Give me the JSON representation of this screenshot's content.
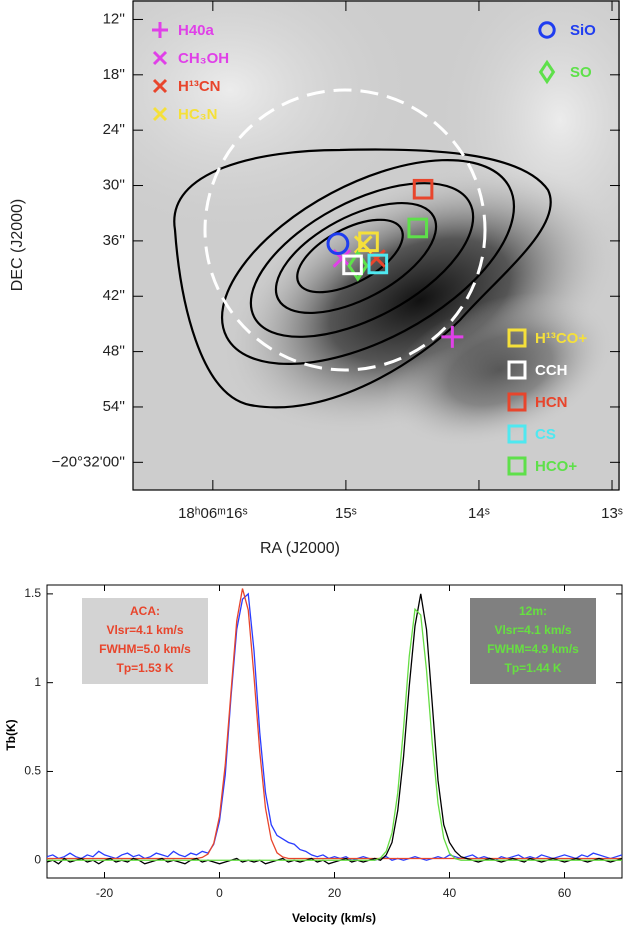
{
  "chart_data": [
    {
      "type": "map",
      "xlabel": "RA (J2000)",
      "ylabel": "DEC (J2000)",
      "xlim": [
        16.6,
        12.94
      ],
      "ylim": [
        63,
        10
      ],
      "xticks": [
        {
          "value": 16,
          "label": "18ʰ06ᵐ16ˢ"
        },
        {
          "value": 15,
          "label": "15ˢ"
        },
        {
          "value": 14,
          "label": "14ˢ"
        },
        {
          "value": 13,
          "label": "13ˢ"
        }
      ],
      "yticks": [
        {
          "value": 12,
          "label": "12''"
        },
        {
          "value": 18,
          "label": "18''"
        },
        {
          "value": 24,
          "label": "24''"
        },
        {
          "value": 30,
          "label": "30''"
        },
        {
          "value": 36,
          "label": "36''"
        },
        {
          "value": 42,
          "label": "42''"
        },
        {
          "value": 48,
          "label": "48''"
        },
        {
          "value": 54,
          "label": "54''"
        },
        {
          "value": 60,
          "label": "−20°32'00''"
        }
      ],
      "series": [
        {
          "name": "H40a",
          "color": "#e040e8",
          "marker": "plus",
          "x": [
            14.2
          ],
          "y": [
            46.4
          ]
        },
        {
          "name": "CH₃OH",
          "color": "#e040e8",
          "marker": "x",
          "x": [
            15.03
          ],
          "y": [
            37.9
          ]
        },
        {
          "name": "H¹³CN",
          "color": "#e8452c",
          "marker": "x",
          "x": [
            14.77
          ],
          "y": [
            37.9
          ]
        },
        {
          "name": "HC₃N",
          "color": "#f5e03a",
          "marker": "x",
          "x": [
            14.87
          ],
          "y": [
            36.4
          ]
        },
        {
          "name": "SiO",
          "color": "#1f3df0",
          "marker": "circle",
          "x": [
            15.06
          ],
          "y": [
            36.3
          ]
        },
        {
          "name": "SO",
          "color": "#5ee04a",
          "marker": "diamond",
          "x": [
            14.91
          ],
          "y": [
            38.7
          ]
        },
        {
          "name": "H¹³CO+",
          "color": "#f5e03a",
          "marker": "square",
          "x": [
            14.83
          ],
          "y": [
            36.1
          ]
        },
        {
          "name": "CCH",
          "color": "#ffffff",
          "marker": "square",
          "x": [
            14.95
          ],
          "y": [
            38.6
          ]
        },
        {
          "name": "HCN",
          "color": "#e8452c",
          "marker": "square",
          "x": [
            14.42
          ],
          "y": [
            30.4
          ]
        },
        {
          "name": "CS",
          "color": "#4fe8f0",
          "marker": "square",
          "x": [
            14.76
          ],
          "y": [
            38.5
          ]
        },
        {
          "name": "HCO+",
          "color": "#5ee04a",
          "marker": "square",
          "x": [
            14.46
          ],
          "y": [
            34.6
          ]
        }
      ]
    },
    {
      "type": "line",
      "xlabel": "Velocity (km/s)",
      "ylabel": "Tb(K)",
      "xlim": [
        -30,
        70
      ],
      "ylim": [
        -0.1,
        1.55
      ],
      "xticks": [
        -20,
        0,
        20,
        40,
        60
      ],
      "yticks": [
        0,
        0.5,
        1,
        1.5
      ],
      "annotations": [
        {
          "lines": [
            "ACA:",
            "Vlsr=4.1 km/s",
            "FWHM=5.0 km/s",
            "Tp=1.53 K"
          ],
          "color": "#e8452c",
          "background": "#d3d3d3"
        },
        {
          "lines": [
            "12m:",
            "Vlsr=4.1 km/s",
            "FWHM=4.9 km/s",
            "Tp=1.44 K"
          ],
          "color": "#66e040",
          "background": "#808080"
        }
      ],
      "x": [
        -30,
        -29,
        -28,
        -27,
        -26,
        -25,
        -24,
        -23,
        -22,
        -21,
        -20,
        -19,
        -18,
        -17,
        -16,
        -15,
        -14,
        -13,
        -12,
        -11,
        -10,
        -9,
        -8,
        -7,
        -6,
        -5,
        -4,
        -3,
        -2,
        -1,
        0,
        1,
        2,
        3,
        4,
        5,
        6,
        7,
        8,
        9,
        10,
        11,
        12,
        13,
        14,
        15,
        16,
        17,
        18,
        19,
        20,
        21,
        22,
        23,
        24,
        25,
        26,
        27,
        28,
        29,
        30,
        31,
        32,
        33,
        34,
        35,
        36,
        37,
        38,
        39,
        40,
        41,
        42,
        43,
        44,
        45,
        46,
        47,
        48,
        49,
        50,
        51,
        52,
        53,
        54,
        55,
        56,
        57,
        58,
        59,
        60,
        61,
        62,
        63,
        64,
        65,
        66,
        67,
        68,
        69,
        70
      ],
      "series": [
        {
          "color": "#2a3cff",
          "values": [
            0.02,
            0.03,
            0.01,
            0.02,
            0.04,
            0.02,
            0.01,
            0.03,
            0.02,
            0.05,
            0.03,
            0.02,
            0.01,
            0.03,
            0.04,
            0.02,
            0.03,
            0.01,
            0.02,
            0.04,
            0.03,
            0.02,
            0.05,
            0.03,
            0.02,
            0.04,
            0.03,
            0.05,
            0.04,
            0.09,
            0.22,
            0.48,
            0.92,
            1.3,
            1.47,
            1.5,
            1.18,
            0.72,
            0.38,
            0.2,
            0.14,
            0.12,
            0.1,
            0.09,
            0.06,
            0.05,
            0.03,
            0.02,
            0.03,
            0.01,
            0.02,
            0.01,
            0.02,
            0,
            0.01,
            0.02,
            0.01,
            0,
            0.01,
            0.02,
            0,
            0.01,
            0,
            0.01,
            0.02,
            0.01,
            0,
            0.01,
            0.02,
            0.01,
            0.03,
            0.02,
            0.01,
            0.02,
            0.03,
            0.01,
            0.02,
            0.01,
            0,
            0.02,
            0.01,
            0.02,
            0.03,
            0.01,
            0.02,
            0.01,
            0.03,
            0.02,
            0.01,
            0.02,
            0.03,
            0.02,
            0.01,
            0.03,
            0.02,
            0.04,
            0.03,
            0.02,
            0.01,
            0.02,
            0.03
          ]
        },
        {
          "color": "#e8452c",
          "values": [
            0.01,
            0.01,
            0.01,
            0.01,
            0.01,
            0.01,
            0.01,
            0.01,
            0.01,
            0.01,
            0.01,
            0.01,
            0.01,
            0.01,
            0.01,
            0.01,
            0.01,
            0.01,
            0.01,
            0.01,
            0.01,
            0.01,
            0.01,
            0.01,
            0.01,
            0.01,
            0.01,
            0.016,
            0.035,
            0.095,
            0.247,
            0.537,
            0.948,
            1.348,
            1.53,
            1.409,
            1.035,
            0.612,
            0.293,
            0.117,
            0.042,
            0.018,
            0.01,
            0.01,
            0.01,
            0.01,
            0.01,
            0.01,
            0.01,
            0.01,
            0.01,
            0.01,
            0.01,
            0.01,
            0.01,
            0.01,
            0.01,
            0.01,
            0.01,
            0.01,
            0.01,
            0.01,
            0.01,
            0.01,
            0.01,
            0.01,
            0.01,
            0.01,
            0.01,
            0.01,
            0.01,
            0.01,
            0.01,
            0.01,
            0.01,
            0.01,
            0.01,
            0.01,
            0.01,
            0.01,
            0.01,
            0.01,
            0.01,
            0.01,
            0.01,
            0.01,
            0.01,
            0.01,
            0.01,
            0.01,
            0.01,
            0.01,
            0.01,
            0.01,
            0.01,
            0.01,
            0.01,
            0.01,
            0.01,
            0.01,
            0.01
          ]
        },
        {
          "color": "#000000",
          "values": [
            -0.01,
            0,
            -0.02,
            0.01,
            -0.01,
            0,
            0.01,
            -0.01,
            0,
            -0.02,
            0,
            0.01,
            -0.01,
            0,
            -0.01,
            0.01,
            0,
            -0.02,
            -0.01,
            0,
            0.01,
            -0.01,
            0,
            -0.01,
            -0.02,
            0,
            0.01,
            -0.01,
            0,
            -0.01,
            -0.02,
            -0.01,
            0,
            0.01,
            -0.01,
            0,
            -0.01,
            0,
            -0.02,
            -0.01,
            0,
            0.01,
            -0.01,
            0,
            -0.01,
            0,
            0.01,
            -0.01,
            0,
            -0.02,
            -0.01,
            0,
            0.01,
            -0.01,
            0,
            -0.01,
            0,
            0.01,
            0,
            0.03,
            0.1,
            0.28,
            0.58,
            0.98,
            1.32,
            1.5,
            1.3,
            0.88,
            0.45,
            0.2,
            0.1,
            0.05,
            0.02,
            0.01,
            0,
            -0.01,
            0,
            0.01,
            0,
            -0.01,
            0,
            0.01,
            0,
            -0.01,
            0.01,
            0,
            -0.01,
            0,
            0.01,
            0,
            -0.01,
            0,
            0.01,
            0,
            -0.01,
            0,
            0.01,
            0,
            -0.01,
            0,
            0.01
          ]
        },
        {
          "color": "#66dd44",
          "values": [
            0,
            0,
            0,
            0,
            0,
            0,
            0,
            0,
            0,
            0,
            0,
            0,
            0,
            0,
            0,
            0,
            0,
            0,
            0,
            0,
            0,
            0,
            0,
            0,
            0,
            0,
            0,
            0,
            0,
            0,
            0,
            0,
            0,
            0,
            0,
            0,
            0,
            0,
            0,
            0,
            0,
            0,
            0,
            0,
            0,
            0,
            0,
            0,
            0,
            0,
            0,
            0,
            0,
            0,
            0,
            0,
            0,
            0,
            0.013,
            0.05,
            0.154,
            0.379,
            0.741,
            1.149,
            1.414,
            1.381,
            1.071,
            0.66,
            0.322,
            0.125,
            0.039,
            0.009,
            0,
            0,
            0,
            0,
            0,
            0,
            0,
            0,
            0,
            0,
            0,
            0,
            0,
            0,
            0,
            0,
            0,
            0,
            0,
            0,
            0,
            0,
            0,
            0,
            0,
            0,
            0,
            0,
            0
          ]
        }
      ]
    }
  ]
}
